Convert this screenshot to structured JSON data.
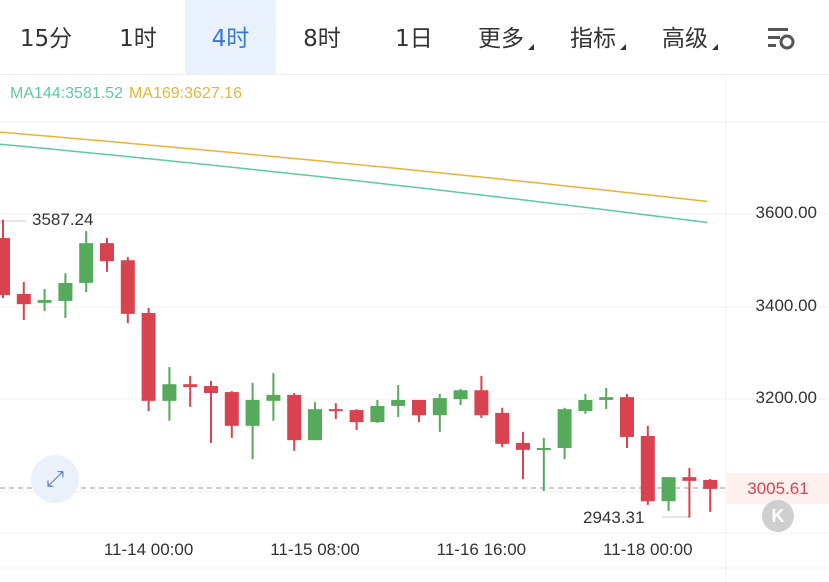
{
  "tabs": [
    {
      "label": "15分",
      "active": false
    },
    {
      "label": "1时",
      "active": false
    },
    {
      "label": "4时",
      "active": true
    },
    {
      "label": "8时",
      "active": false
    },
    {
      "label": "1日",
      "active": false
    },
    {
      "label": "更多",
      "dropdown": true
    },
    {
      "label": "指标",
      "dropdown": true
    },
    {
      "label": "高级",
      "dropdown": true
    }
  ],
  "settings_icon": "chart-settings-icon",
  "indicators": {
    "ma144": "MA144:3581.52",
    "ma169": "MA169:3627.16"
  },
  "colors": {
    "up": "#55aa5c",
    "down": "#d9434f",
    "ma144": "#5cc9a7",
    "ma169": "#e8b33a",
    "active_tab": "#3a78d6"
  },
  "current_price": "3005.61",
  "high_label": "3587.24",
  "low_label": "2943.31",
  "chart_data": {
    "type": "candlestick",
    "interval": "4时",
    "ylim": [
      2880,
      3800
    ],
    "y_ticks": [
      "3600.00",
      "3400.00",
      "3200.00"
    ],
    "x_ticks": [
      "11-14 00:00",
      "11-15 08:00",
      "11-16 16:00",
      "11-18 00:00"
    ],
    "x_tick_index": [
      7,
      15,
      23,
      31
    ],
    "grid": true,
    "candles": [
      [
        3548,
        3587.24,
        3418,
        3425
      ],
      [
        3427,
        3453,
        3371,
        3405
      ],
      [
        3408,
        3438,
        3390,
        3414
      ],
      [
        3412,
        3472,
        3375,
        3451
      ],
      [
        3451,
        3563,
        3431,
        3537
      ],
      [
        3537,
        3548,
        3475,
        3498
      ],
      [
        3500,
        3507,
        3364,
        3384
      ],
      [
        3386,
        3397,
        3174,
        3196
      ],
      [
        3196,
        3269,
        3153,
        3232
      ],
      [
        3232,
        3250,
        3183,
        3226
      ],
      [
        3228,
        3239,
        3105,
        3213
      ],
      [
        3215,
        3217,
        3116,
        3142
      ],
      [
        3142,
        3235,
        3070,
        3198
      ],
      [
        3196,
        3256,
        3153,
        3209
      ],
      [
        3209,
        3213,
        3088,
        3111
      ],
      [
        3111,
        3193,
        3111,
        3178
      ],
      [
        3178,
        3191,
        3157,
        3174
      ],
      [
        3176,
        3178,
        3133,
        3150
      ],
      [
        3150,
        3198,
        3148,
        3185
      ],
      [
        3185,
        3230,
        3161,
        3198
      ],
      [
        3198,
        3198,
        3150,
        3165
      ],
      [
        3165,
        3211,
        3129,
        3202
      ],
      [
        3200,
        3222,
        3187,
        3219
      ],
      [
        3219,
        3250,
        3159,
        3165
      ],
      [
        3170,
        3181,
        3096,
        3103
      ],
      [
        3105,
        3129,
        3027,
        3090
      ],
      [
        3090,
        3116,
        3001,
        3094
      ],
      [
        3094,
        3181,
        3070,
        3178
      ],
      [
        3174,
        3211,
        3168,
        3198
      ],
      [
        3198,
        3224,
        3178,
        3204
      ],
      [
        3204,
        3211,
        3094,
        3118
      ],
      [
        3120,
        3142,
        2971,
        2979
      ],
      [
        2979,
        3031,
        2958,
        3031
      ],
      [
        3031,
        3051,
        2943.31,
        3023
      ],
      [
        3025,
        3027,
        2956,
        3005.61
      ]
    ],
    "candle_fields": [
      "open",
      "high",
      "low",
      "close"
    ],
    "series": [
      {
        "name": "MA144",
        "start": 3751,
        "end": 3581.52
      },
      {
        "name": "MA169",
        "start": 3777,
        "end": 3627.16
      }
    ]
  }
}
